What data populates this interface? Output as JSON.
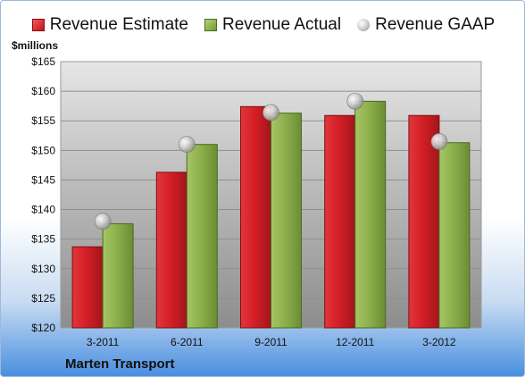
{
  "legend": {
    "estimate": "Revenue Estimate",
    "actual": "Revenue Actual",
    "gaap": "Revenue GAAP"
  },
  "unit_label": "$millions",
  "company": "Marten Transport",
  "colors": {
    "estimate": "#d41f26",
    "actual": "#8db04c",
    "gaap": "#c8c8c8"
  },
  "chart_data": {
    "type": "bar",
    "categories": [
      "3-2011",
      "6-2011",
      "9-2011",
      "12-2011",
      "3-2012"
    ],
    "series": [
      {
        "name": "Revenue Estimate",
        "values": [
          133.7,
          146.3,
          157.4,
          155.9,
          155.9
        ]
      },
      {
        "name": "Revenue Actual",
        "values": [
          137.6,
          151.0,
          156.3,
          158.3,
          151.3
        ]
      },
      {
        "name": "Revenue GAAP",
        "values": [
          138.0,
          151.0,
          156.4,
          158.3,
          151.5
        ]
      }
    ],
    "ylim": [
      120,
      165
    ],
    "yticks": [
      120,
      125,
      130,
      135,
      140,
      145,
      150,
      155,
      160,
      165
    ],
    "ytick_labels": [
      "$120",
      "$125",
      "$130",
      "$135",
      "$140",
      "$145",
      "$150",
      "$155",
      "$160",
      "$165"
    ],
    "grid": true,
    "legend_position": "top"
  }
}
